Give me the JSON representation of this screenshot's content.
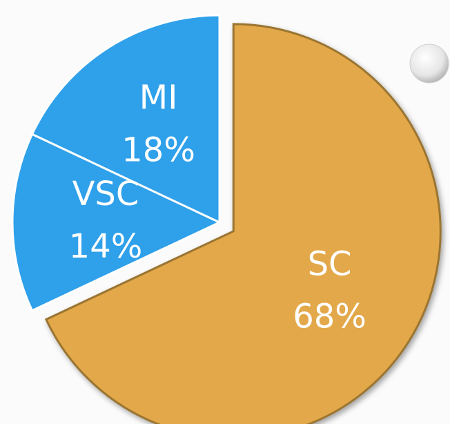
{
  "chart_data": {
    "type": "pie",
    "categories": [
      "SC",
      "VSC",
      "MI"
    ],
    "values": [
      68,
      14,
      18
    ],
    "value_labels": [
      "68%",
      "14%",
      "18%"
    ],
    "colors": [
      "#e3a84a",
      "#2fa0ea",
      "#2fa0ea"
    ],
    "exploded": "SC"
  }
}
